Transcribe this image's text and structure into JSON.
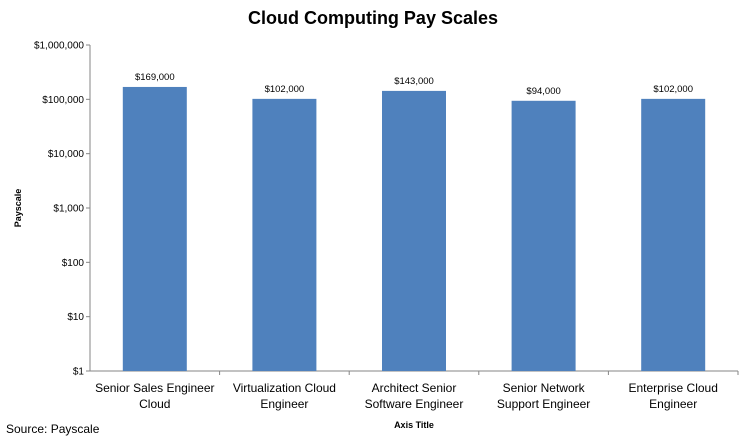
{
  "chart_data": {
    "type": "bar",
    "title": "Cloud Computing Pay Scales",
    "xlabel": "Axis Title",
    "ylabel": "Payscale",
    "yscale": "log",
    "ylim": [
      1,
      1000000
    ],
    "grid": false,
    "legend": "none",
    "bar_color": "#4F81BD",
    "categories": [
      [
        "Senior Sales Engineer",
        "Cloud"
      ],
      [
        "Virtualization Cloud",
        "Engineer"
      ],
      [
        "Architect Senior",
        "Software Engineer"
      ],
      [
        "Senior Network",
        "Support Engineer"
      ],
      [
        "Enterprise Cloud",
        "Engineer"
      ]
    ],
    "values": [
      169000,
      102000,
      143000,
      94000,
      102000
    ],
    "data_labels": [
      "$169,000",
      "$102,000",
      "$143,000",
      "$94,000",
      "$102,000"
    ],
    "y_ticks": [
      1,
      10,
      100,
      1000,
      10000,
      100000,
      1000000
    ],
    "y_tick_labels": [
      "$1",
      "$10",
      "$100",
      "$1,000",
      "$10,000",
      "$100,000",
      "$1,000,000"
    ]
  },
  "source": "Source:  Payscale"
}
